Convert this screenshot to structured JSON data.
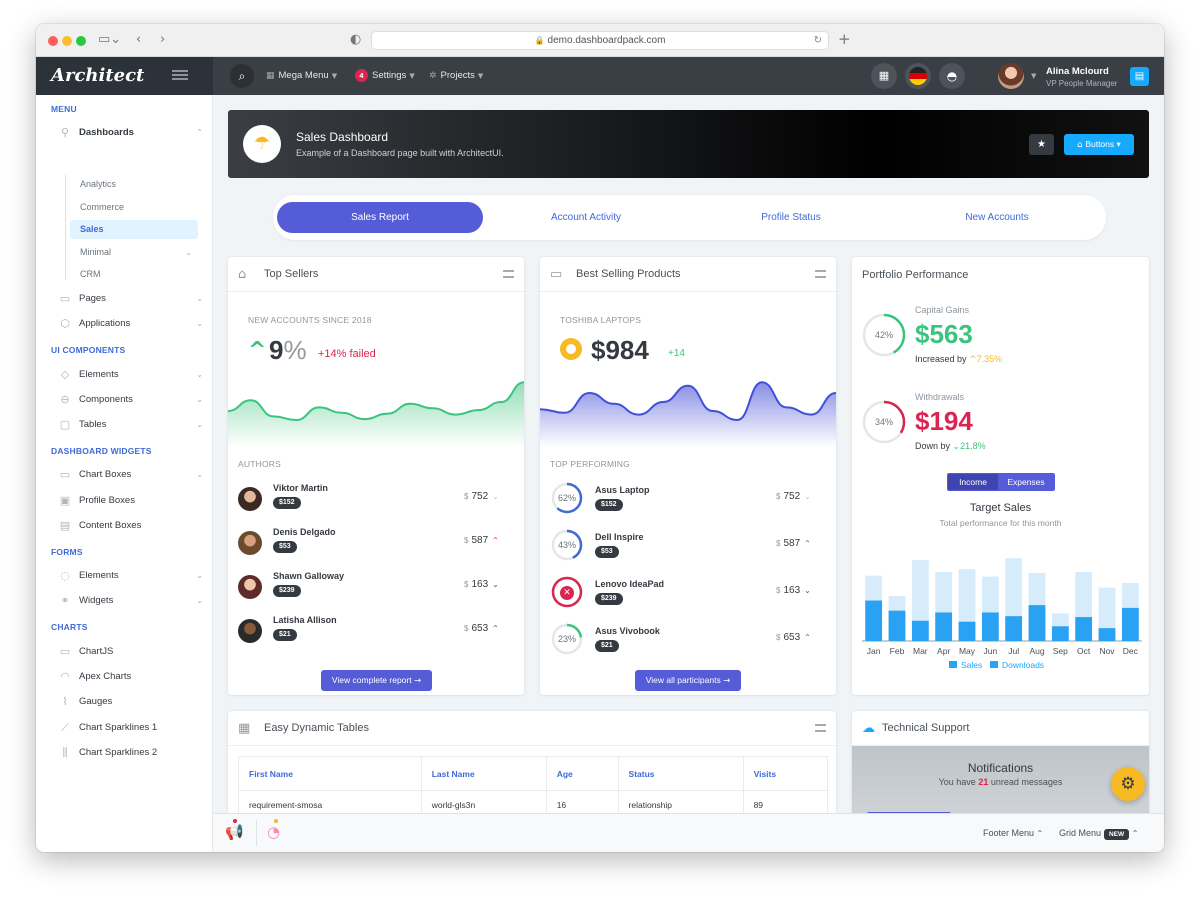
{
  "browser": {
    "url": "demo.dashboardpack.com"
  },
  "brand": {
    "logo": "Architect"
  },
  "sidebar": {
    "sections": [
      "MENU",
      "UI COMPONENTS",
      "DASHBOARD WIDGETS",
      "FORMS",
      "CHARTS"
    ],
    "dashboards": "Dashboards",
    "dash_sub": [
      "Analytics",
      "Commerce",
      "Sales",
      "Minimal",
      "CRM"
    ],
    "pages": "Pages",
    "applications": "Applications",
    "ui": [
      "Elements",
      "Components",
      "Tables"
    ],
    "widgets": [
      "Chart Boxes",
      "Profile Boxes",
      "Content Boxes"
    ],
    "forms": [
      "Elements",
      "Widgets"
    ],
    "charts": [
      "ChartJS",
      "Apex Charts",
      "Gauges",
      "Chart Sparklines 1",
      "Chart Sparklines 2"
    ]
  },
  "header": {
    "mega": "Mega Menu",
    "settings": "Settings",
    "settings_badge": "4",
    "projects": "Projects",
    "user_name": "Alina Mclourd",
    "user_role": "VP People Manager"
  },
  "page_title": {
    "title": "Sales Dashboard",
    "subtitle": "Example of a Dashboard page built with ArchitectUI.",
    "buttons": "Buttons"
  },
  "tabs": [
    "Sales Report",
    "Account Activity",
    "Profile Status",
    "New Accounts"
  ],
  "top_sellers": {
    "title": "Top Sellers",
    "label": "NEW ACCOUNTS SINCE 2018",
    "value": "9",
    "unit": "%",
    "change": "+14% failed",
    "authors_label": "AUTHORS",
    "rows": [
      {
        "name": "Viktor Martin",
        "badge": "$152",
        "value": "752",
        "dir": "down"
      },
      {
        "name": "Denis Delgado",
        "badge": "$53",
        "value": "587",
        "dir": "up"
      },
      {
        "name": "Shawn Galloway",
        "badge": "$239",
        "value": "163",
        "dir": "down"
      },
      {
        "name": "Latisha Allison",
        "badge": "$21",
        "value": "653",
        "dir": "up"
      }
    ],
    "button": "View complete report",
    "currency": "$"
  },
  "best_selling": {
    "title": "Best Selling Products",
    "label": "TOSHIBA LAPTOPS",
    "value": "$984",
    "change": "+14",
    "top_label": "TOP PERFORMING",
    "rows": [
      {
        "name": "Asus Laptop",
        "badge": "$152",
        "value": "752",
        "pct": "62%",
        "ring": 0.62,
        "color": "#3f6ad8",
        "dir": "down"
      },
      {
        "name": "Dell Inspire",
        "badge": "$53",
        "value": "587",
        "pct": "43%",
        "ring": 0.43,
        "color": "#3f6ad8",
        "dir": "up"
      },
      {
        "name": "Lenovo IdeaPad",
        "badge": "$239",
        "value": "163",
        "pct": "",
        "ring": 1,
        "color": "#d92550",
        "dir": "down"
      },
      {
        "name": "Asus Vivobook",
        "badge": "$21",
        "value": "653",
        "pct": "23%",
        "ring": 0.23,
        "color": "#3ac47d",
        "dir": "up"
      }
    ],
    "button": "View all participants",
    "currency": "$"
  },
  "portfolio": {
    "title": "Portfolio Performance",
    "gains_label": "Capital Gains",
    "gains_pct": "42%",
    "gains_ring": 0.42,
    "gains_value": "$563",
    "gains_sub": "Increased by",
    "gains_change": "7.35%",
    "with_label": "Withdrawals",
    "with_pct": "34%",
    "with_ring": 0.34,
    "with_value": "$194",
    "with_sub": "Down by",
    "with_change": "21.8%",
    "toggle": [
      "Income",
      "Expenses"
    ],
    "chart_title": "Target Sales",
    "chart_subtitle": "Total performance for this month"
  },
  "colors": {
    "green": "#3ac47d",
    "red": "#d92550",
    "blue": "#3f6ad8",
    "yellow": "#f7b924",
    "primary": "#545cd8",
    "cyan": "#16aaff"
  },
  "chart_data": [
    {
      "type": "area",
      "name": "top-sellers-sparkline",
      "values": [
        40,
        52,
        34,
        30,
        44,
        38,
        31,
        37,
        48,
        43,
        36,
        41,
        50,
        72
      ]
    },
    {
      "type": "area",
      "name": "best-selling-sparkline",
      "values": [
        42,
        38,
        60,
        48,
        36,
        50,
        68,
        40,
        30,
        72,
        44,
        36,
        60
      ]
    },
    {
      "type": "bar",
      "categories": [
        "Jan",
        "Feb",
        "Mar",
        "Apr",
        "May",
        "Jun",
        "Jul",
        "Aug",
        "Sep",
        "Oct",
        "Nov",
        "Dec"
      ],
      "series": [
        {
          "name": "Sales",
          "values": [
            44,
            33,
            22,
            31,
            21,
            31,
            27,
            39,
            16,
            26,
            14,
            36
          ]
        },
        {
          "name": "Downloads",
          "values": [
            71,
            49,
            88,
            75,
            78,
            70,
            90,
            74,
            30,
            75,
            58,
            63
          ]
        }
      ],
      "ylim": [
        0,
        100
      ],
      "legend": "bottom"
    }
  ],
  "tables": {
    "title": "Easy Dynamic Tables",
    "headers": [
      "First Name",
      "Last Name",
      "Age",
      "Status",
      "Visits"
    ],
    "row": [
      "requirement-smosa",
      "world-gls3n",
      "16",
      "relationship",
      "89"
    ]
  },
  "support": {
    "title": "Technical Support",
    "notif_title": "Notifications",
    "notif_pre": "You have",
    "notif_count": "21",
    "notif_post": "unread messages"
  },
  "footer": {
    "menu": "Footer Menu",
    "grid": "Grid Menu",
    "new": "NEW"
  }
}
